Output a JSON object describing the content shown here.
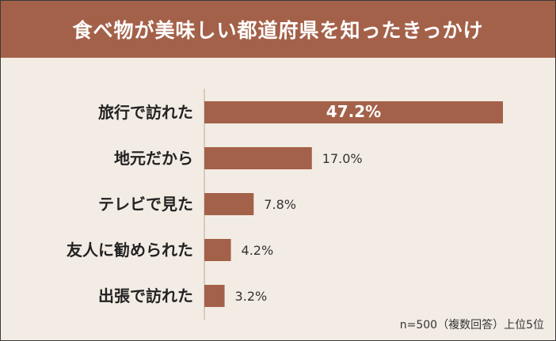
{
  "title": "食べ物が美味しい都道府県を知ったきっかけ",
  "note": "n=500（複数回答）上位5位",
  "colors": {
    "accent": "#a4614a",
    "background": "#f3ece4",
    "title_text": "#ffffff",
    "label_text": "#222222"
  },
  "chart_data": {
    "type": "bar",
    "orientation": "horizontal",
    "title": "食べ物が美味しい都道府県を知ったきっかけ",
    "categories": [
      "旅行で訪れた",
      "地元だから",
      "テレビで見た",
      "友人に勧められた",
      "出張で訪れた"
    ],
    "values": [
      47.2,
      17.0,
      7.8,
      4.2,
      3.2
    ],
    "value_labels": [
      "47.2%",
      "17.0%",
      "7.8%",
      "4.2%",
      "3.2%"
    ],
    "unit": "%",
    "xlim": [
      0,
      47.2
    ],
    "grid": false,
    "legend": "none"
  }
}
